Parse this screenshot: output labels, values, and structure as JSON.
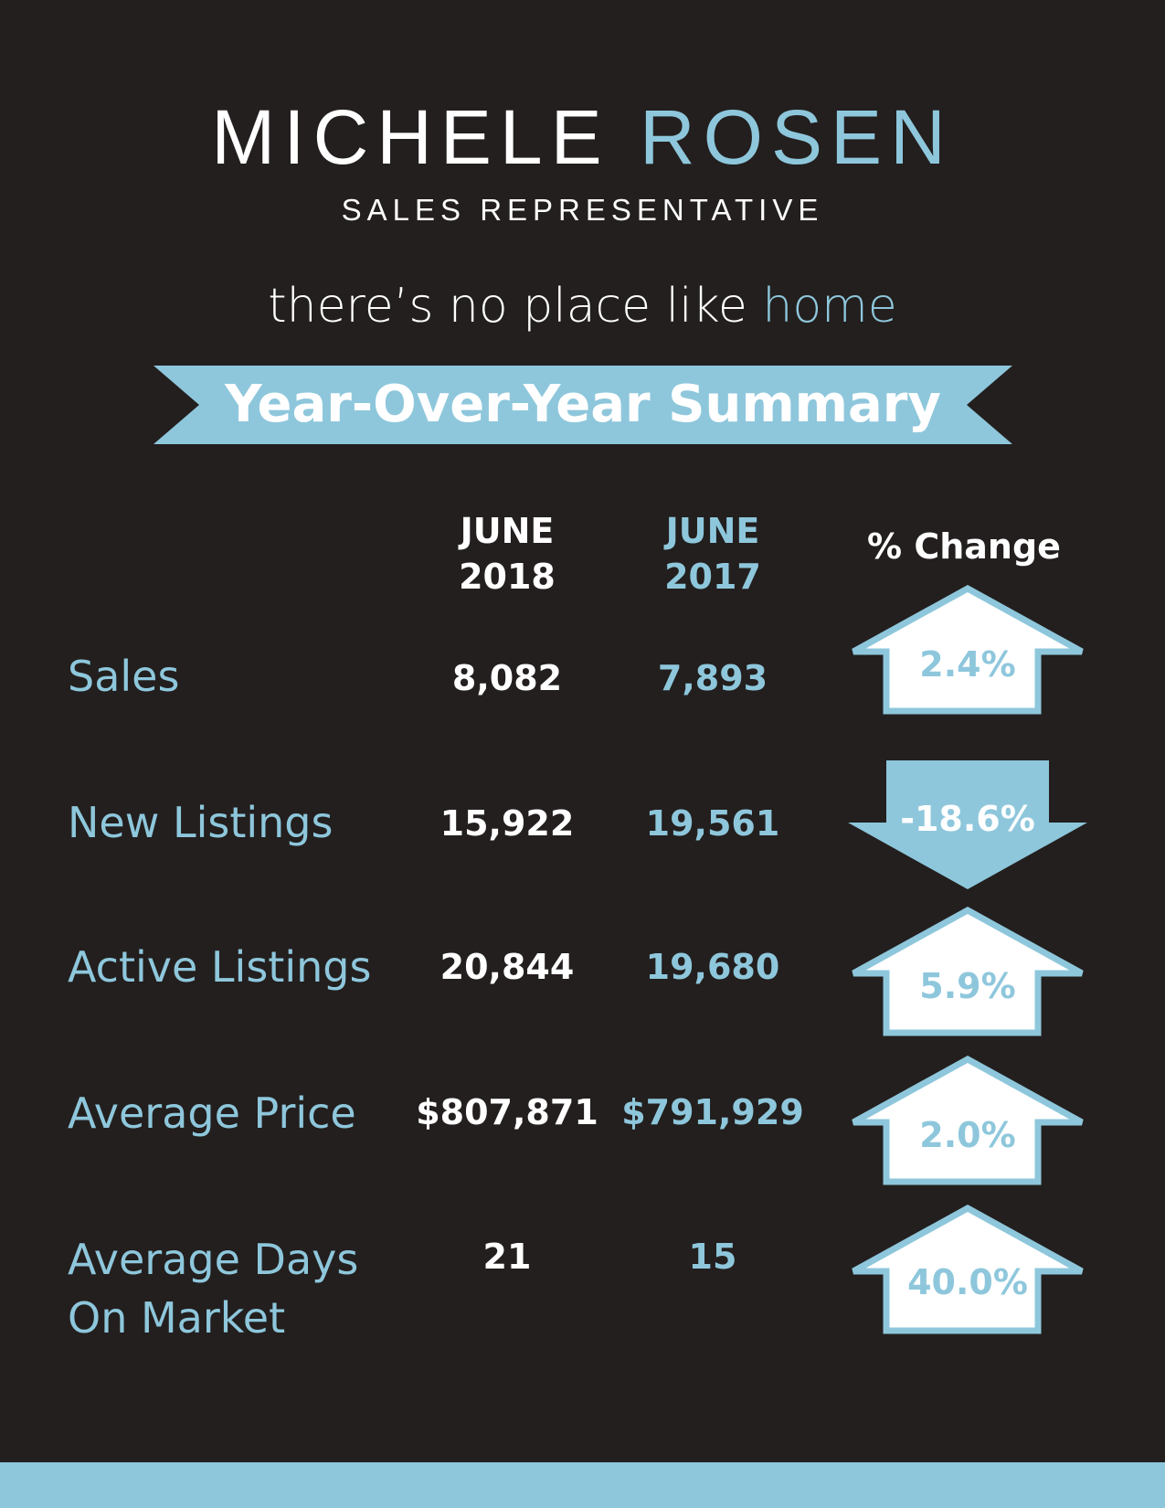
{
  "header": {
    "first_name": "MICHELE",
    "last_name": "ROSEN",
    "role": "SALES REPRESENTATIVE",
    "tagline_main": "there’s no place like",
    "tagline_accent": "home"
  },
  "banner": {
    "title": "Year-Over-Year Summary"
  },
  "columns": {
    "col_2018_month": "JUNE",
    "col_2018_year": "2018",
    "col_2017_month": "JUNE",
    "col_2017_year": "2017",
    "change": "% Change"
  },
  "rows": [
    {
      "label": "Sales",
      "v2018": "8,082",
      "v2017": "7,893",
      "change": "2.4%",
      "direction": "up"
    },
    {
      "label": "New Listings",
      "v2018": "15,922",
      "v2017": "19,561",
      "change": "-18.6%",
      "direction": "down"
    },
    {
      "label": "Active Listings",
      "v2018": "20,844",
      "v2017": "19,680",
      "change": "5.9%",
      "direction": "up"
    },
    {
      "label": "Average Price",
      "v2018": "$807,871",
      "v2017": "$791,929",
      "change": "2.0%",
      "direction": "up"
    },
    {
      "label_line1": "Average Days",
      "label_line2": "On Market",
      "v2018": "21",
      "v2017": "15",
      "change": "40.0%",
      "direction": "up"
    }
  ],
  "colors": {
    "background": "#231f1e",
    "accent": "#8ec7dc",
    "text": "#ffffff"
  },
  "icons": {
    "up": "up-arrow-icon",
    "down": "down-arrow-icon"
  }
}
